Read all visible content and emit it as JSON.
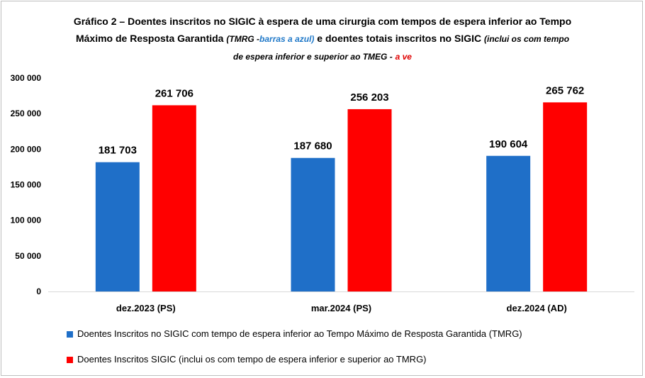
{
  "title": {
    "line1": "Gráfico 2 – Doentes inscritos no SIGIC à espera de uma cirurgia com tempos de espera inferior ao Tempo",
    "line2_a": "Máximo de Resposta Garantida",
    "line2_b": "(TMRG -",
    "line2_c": "barras a azul)",
    "line2_d": "e doentes totais inscritos no SIGIC",
    "line2_e": "(inclui os com tempo",
    "line3_a": "de espera inferior e superior ao TMEG -",
    "line3_b": "a ve"
  },
  "colors": {
    "blue": "#1f6fc8",
    "red": "#ff0000"
  },
  "chart_data": {
    "type": "bar",
    "categories": [
      "dez.2023 (PS)",
      "mar.2024 (PS)",
      "dez.2024 (AD)"
    ],
    "series": [
      {
        "name": "Doentes Inscritos no SIGIC com tempo de espera inferior ao Tempo Máximo de Resposta Garantida (TMRG)",
        "values": [
          181703,
          187680,
          190604
        ]
      },
      {
        "name": "Doentes Inscritos SIGIC (inclui os com tempo de espera inferior e superior ao TMRG)",
        "values": [
          261706,
          256203,
          265762
        ]
      }
    ],
    "value_labels": [
      [
        "181 703",
        "187 680",
        "190 604"
      ],
      [
        "261 706",
        "256 203",
        "265 762"
      ]
    ],
    "ylim": [
      0,
      300000
    ],
    "yticks": [
      0,
      50000,
      100000,
      150000,
      200000,
      250000,
      300000
    ],
    "ytick_labels": [
      "0",
      "50 000",
      "100 000",
      "150 000",
      "200 000",
      "250 000",
      "300 000"
    ],
    "legend_position": "bottom"
  }
}
